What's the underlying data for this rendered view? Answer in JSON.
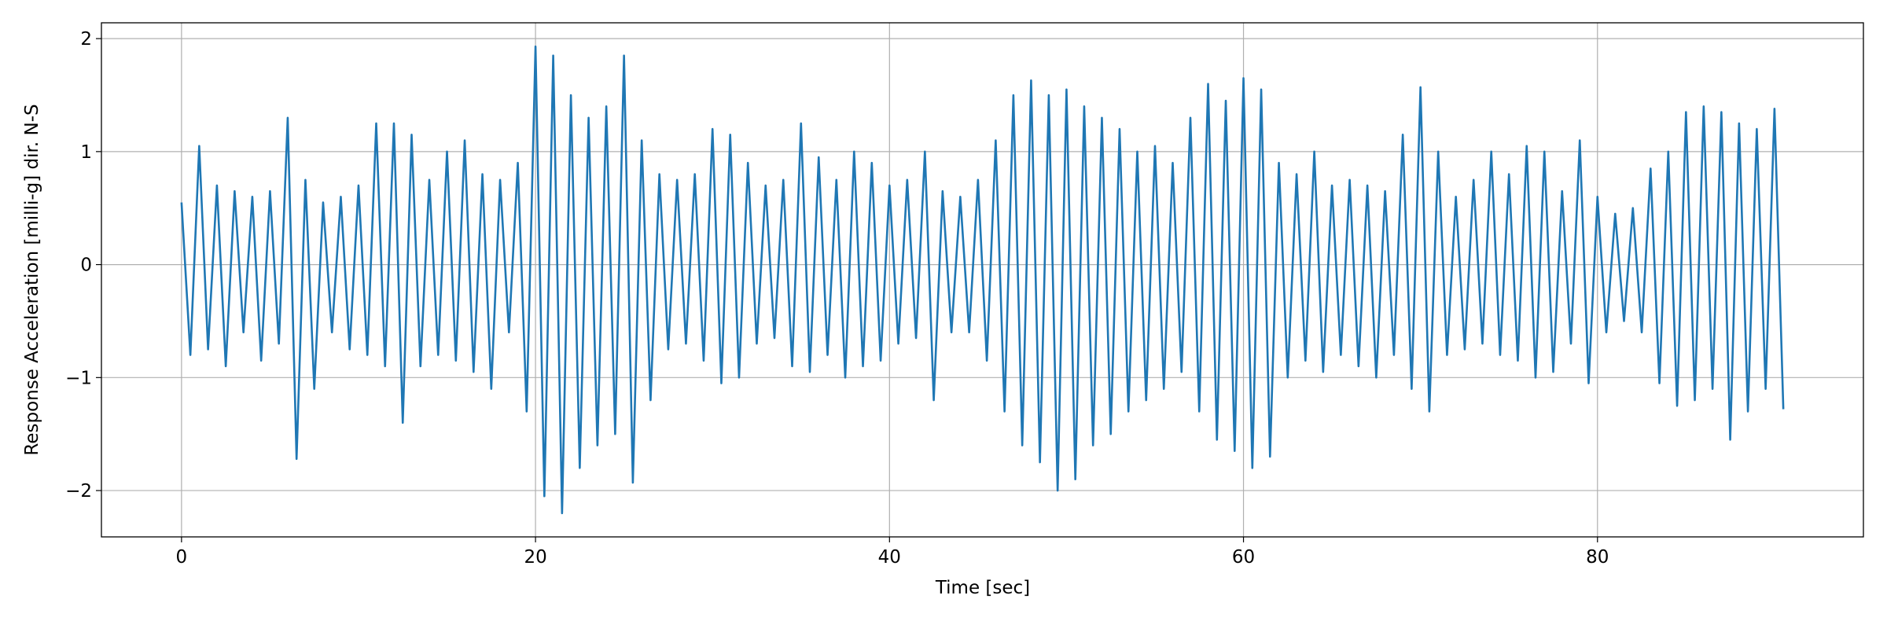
{
  "chart_data": {
    "type": "line",
    "xlabel": "Time [sec]",
    "ylabel": "Response Acceleration [milli-g] dir. N-S",
    "color": "#1f77b4",
    "grid": true,
    "xlim": [
      -4.525,
      95.025
    ],
    "ylim": [
      -2.41,
      2.14
    ],
    "xticks": [
      0,
      20,
      40,
      60,
      80
    ],
    "yticks": [
      {
        "value": -2,
        "label": "−2"
      },
      {
        "value": -1,
        "label": "−1"
      },
      0,
      1,
      2
    ],
    "x": [
      0,
      0.5,
      1,
      1.5,
      2,
      2.5,
      3,
      3.5,
      4,
      4.5,
      5,
      5.5,
      6,
      6.5,
      7,
      7.5,
      8,
      8.5,
      9,
      9.5,
      10,
      10.5,
      11,
      11.5,
      12,
      12.5,
      13,
      13.5,
      14,
      14.5,
      15,
      15.5,
      16,
      16.5,
      17,
      17.5,
      18,
      18.5,
      19,
      19.5,
      20,
      20.5,
      21,
      21.5,
      22,
      22.5,
      23,
      23.5,
      24,
      24.5,
      25,
      25.5,
      26,
      26.5,
      27,
      27.5,
      28,
      28.5,
      29,
      29.5,
      30,
      30.5,
      31,
      31.5,
      32,
      32.5,
      33,
      33.5,
      34,
      34.5,
      35,
      35.5,
      36,
      36.5,
      37,
      37.5,
      38,
      38.5,
      39,
      39.5,
      40,
      40.5,
      41,
      41.5,
      42,
      42.5,
      43,
      43.5,
      44,
      44.5,
      45,
      45.5,
      46,
      46.5,
      47,
      47.5,
      48,
      48.5,
      49,
      49.5,
      50,
      50.5,
      51,
      51.5,
      52,
      52.5,
      53,
      53.5,
      54,
      54.5,
      55,
      55.5,
      56,
      56.5,
      57,
      57.5,
      58,
      58.5,
      59,
      59.5,
      60,
      60.5,
      61,
      61.5,
      62,
      62.5,
      63,
      63.5,
      64,
      64.5,
      65,
      65.5,
      66,
      66.5,
      67,
      67.5,
      68,
      68.5,
      69,
      69.5,
      70,
      70.5,
      71,
      71.5,
      72,
      72.5,
      73,
      73.5,
      74,
      74.5,
      75,
      75.5,
      76,
      76.5,
      77,
      77.5,
      78,
      78.5,
      79,
      79.5,
      80,
      80.5,
      81,
      81.5,
      82,
      82.5,
      83,
      83.5,
      84,
      84.5,
      85,
      85.5,
      86,
      86.5,
      87,
      87.5,
      88,
      88.5,
      89,
      89.5,
      90,
      90.5
    ],
    "values": [
      0.55,
      -0.8,
      1.05,
      -0.75,
      0.7,
      -0.9,
      0.65,
      -0.6,
      0.6,
      -0.85,
      0.65,
      -0.7,
      1.3,
      -1.72,
      0.75,
      -1.1,
      0.55,
      -0.6,
      0.6,
      -0.75,
      0.7,
      -0.8,
      1.25,
      -0.9,
      1.25,
      -1.4,
      1.15,
      -0.9,
      0.75,
      -0.8,
      1.0,
      -0.85,
      1.1,
      -0.95,
      0.8,
      -1.1,
      0.75,
      -0.6,
      0.9,
      -1.3,
      1.93,
      -2.05,
      1.85,
      -2.2,
      1.5,
      -1.8,
      1.3,
      -1.6,
      1.4,
      -1.5,
      1.85,
      -1.93,
      1.1,
      -1.2,
      0.8,
      -0.75,
      0.75,
      -0.7,
      0.8,
      -0.85,
      1.2,
      -1.05,
      1.15,
      -1.0,
      0.9,
      -0.7,
      0.7,
      -0.65,
      0.75,
      -0.9,
      1.25,
      -0.95,
      0.95,
      -0.8,
      0.75,
      -1.0,
      1.0,
      -0.9,
      0.9,
      -0.85,
      0.7,
      -0.7,
      0.75,
      -0.65,
      1.0,
      -1.2,
      0.65,
      -0.6,
      0.6,
      -0.6,
      0.75,
      -0.85,
      1.1,
      -1.3,
      1.5,
      -1.6,
      1.63,
      -1.75,
      1.5,
      -2.0,
      1.55,
      -1.9,
      1.4,
      -1.6,
      1.3,
      -1.5,
      1.2,
      -1.3,
      1.0,
      -1.2,
      1.05,
      -1.1,
      0.9,
      -0.95,
      1.3,
      -1.3,
      1.6,
      -1.55,
      1.45,
      -1.65,
      1.65,
      -1.8,
      1.55,
      -1.7,
      0.9,
      -1.0,
      0.8,
      -0.85,
      1.0,
      -0.95,
      0.7,
      -0.8,
      0.75,
      -0.9,
      0.7,
      -1.0,
      0.65,
      -0.8,
      1.15,
      -1.1,
      1.57,
      -1.3,
      1.0,
      -0.8,
      0.6,
      -0.75,
      0.75,
      -0.7,
      1.0,
      -0.8,
      0.8,
      -0.85,
      1.05,
      -1.0,
      1.0,
      -0.95,
      0.65,
      -0.7,
      1.1,
      -1.05,
      0.6,
      -0.6,
      0.45,
      -0.5,
      0.5,
      -0.6,
      0.85,
      -1.05,
      1.0,
      -1.25,
      1.35,
      -1.2,
      1.4,
      -1.1,
      1.35,
      -1.55,
      1.25,
      -1.3,
      1.2,
      -1.1,
      1.38,
      -1.28
    ]
  }
}
